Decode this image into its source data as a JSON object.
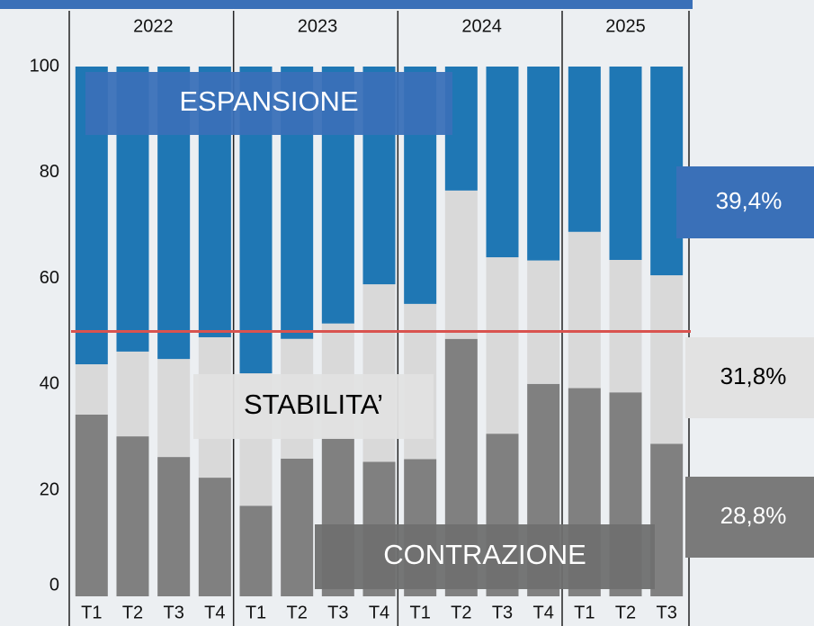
{
  "chart_data": {
    "type": "stacked_bar",
    "groups": [
      "2022",
      "2023",
      "2024",
      "2025"
    ],
    "categories": [
      "T1",
      "T2",
      "T3",
      "T4",
      "T1",
      "T2",
      "T3",
      "T4",
      "T1",
      "T2",
      "T3",
      "T4",
      "T1",
      "T2",
      "T3"
    ],
    "series": [
      {
        "name": "CONTRAZIONE",
        "color": "#808080",
        "values": [
          34.3,
          30.2,
          26.3,
          22.4,
          17.1,
          26.0,
          30.0,
          25.4,
          25.9,
          48.6,
          30.7,
          40.1,
          39.3,
          38.5,
          28.8
        ],
        "value_labels": [
          null,
          null,
          null,
          null,
          null,
          null,
          null,
          null,
          null,
          null,
          null,
          null,
          null,
          null,
          "28,8%"
        ]
      },
      {
        "name": "STABILITA’",
        "color": "#d9d9d9",
        "values": [
          9.5,
          16.0,
          18.5,
          26.5,
          25.0,
          22.6,
          21.5,
          33.5,
          29.3,
          28.0,
          33.3,
          23.3,
          29.5,
          25.0,
          31.8
        ],
        "value_labels": [
          null,
          null,
          null,
          null,
          null,
          null,
          null,
          null,
          null,
          null,
          null,
          null,
          null,
          null,
          "31,8%"
        ]
      },
      {
        "name": "ESPANSIONE",
        "color": "#1f77b4",
        "values": [
          56.2,
          53.8,
          55.2,
          51.1,
          57.9,
          51.4,
          48.5,
          41.1,
          44.8,
          23.4,
          36.0,
          36.6,
          31.2,
          36.5,
          39.4
        ],
        "value_labels": [
          null,
          null,
          null,
          null,
          null,
          null,
          null,
          null,
          null,
          null,
          null,
          null,
          null,
          null,
          "39,4%"
        ]
      }
    ],
    "reference_line": {
      "value": 50,
      "color": "#d9534f"
    },
    "ylim": [
      0,
      100
    ],
    "yticks": [
      0,
      20,
      40,
      60,
      80,
      100
    ],
    "grid": false
  }
}
